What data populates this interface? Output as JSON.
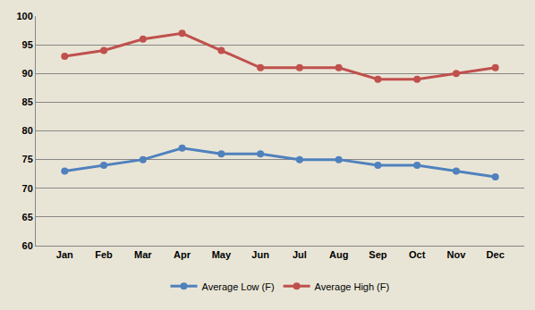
{
  "chart_data": {
    "type": "line",
    "categories": [
      "Jan",
      "Feb",
      "Mar",
      "Apr",
      "May",
      "Jun",
      "Jul",
      "Aug",
      "Sep",
      "Oct",
      "Nov",
      "Dec"
    ],
    "series": [
      {
        "name": "Average Low (F)",
        "color": "#4f81bd",
        "marker": "circle",
        "line_style": "solid",
        "values": [
          73,
          74,
          75,
          77,
          76,
          76,
          75,
          75,
          74,
          74,
          73,
          72
        ]
      },
      {
        "name": "Average High (F)",
        "color": "#c0504d",
        "marker": "circle",
        "line_style": "solid",
        "values": [
          93,
          94,
          96,
          97,
          94,
          91,
          91,
          91,
          89,
          89,
          90,
          91
        ]
      }
    ],
    "ylim": [
      60,
      100
    ],
    "yticks": [
      60,
      65,
      70,
      75,
      80,
      85,
      90,
      95,
      100
    ],
    "grid": true,
    "legend": "bottom"
  }
}
